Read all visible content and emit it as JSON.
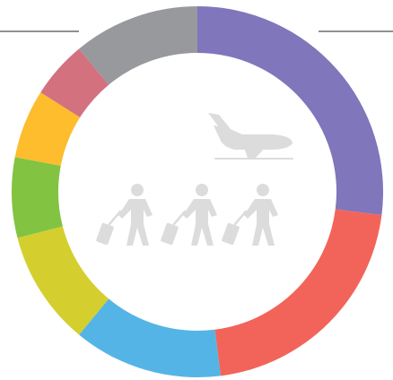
{
  "chart_data": {
    "type": "pie",
    "donut": true,
    "values": [
      27,
      21,
      13,
      10,
      7,
      6,
      5,
      11
    ],
    "colors": [
      "#7f76bb",
      "#f2645a",
      "#55b4e6",
      "#d4cf2e",
      "#82c341",
      "#fdbd2c",
      "#d3717f",
      "#98999d"
    ]
  }
}
